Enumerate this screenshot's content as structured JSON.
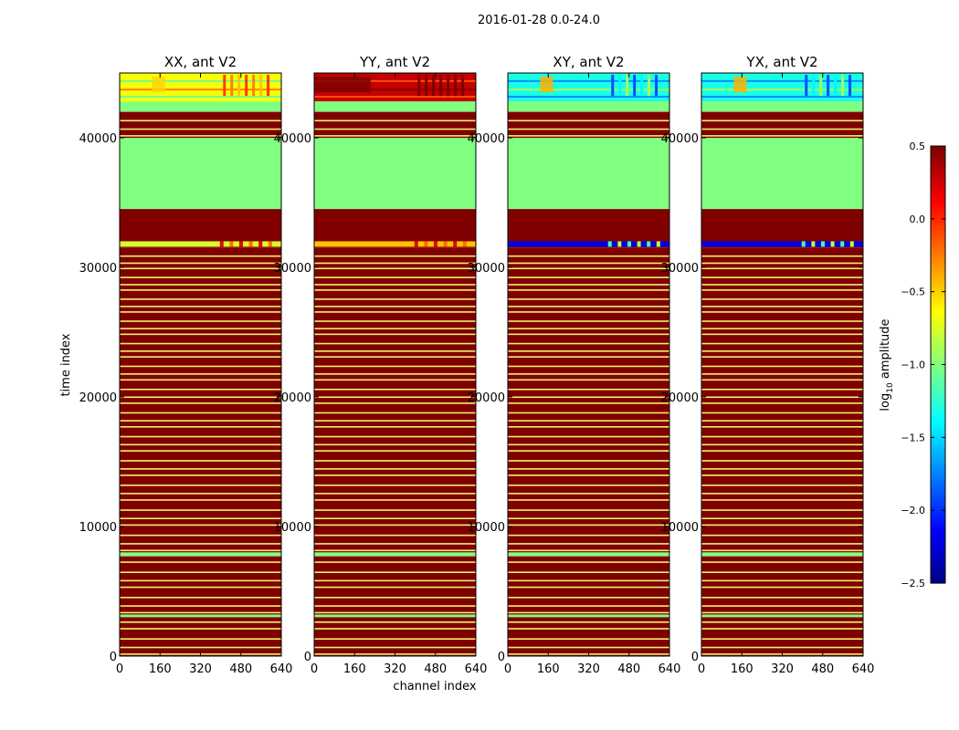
{
  "chart_data": {
    "type": "heatmap",
    "title": "2016-01-28 0.0-24.0",
    "xlabel": "channel index",
    "ylabel": "time index",
    "xlim": [
      0,
      640
    ],
    "ylim": [
      0,
      45000
    ],
    "xticks": [
      0,
      160,
      320,
      480,
      640
    ],
    "yticks": [
      0,
      10000,
      20000,
      30000,
      40000
    ],
    "colorbar": {
      "label_main": "log",
      "label_sub": "10",
      "label_rest": " amplitude",
      "range": [
        -2.5,
        0.5
      ],
      "ticks": [
        -2.5,
        -2.0,
        -1.5,
        -1.0,
        -0.5,
        0.0,
        0.5
      ],
      "tick_labels": [
        "−2.5",
        "−2.0",
        "−1.5",
        "−1.0",
        "−0.5",
        "0.0",
        "0.5"
      ],
      "colormap": "jet"
    },
    "series": [
      {
        "name": "XX, ant V2",
        "top_level": -0.65,
        "flag_level": -0.6,
        "flag_band_hot": true
      },
      {
        "name": "YY, ant V2",
        "top_level": 0.3,
        "flag_level": -0.3,
        "flag_band_hot": true
      },
      {
        "name": "XY, ant V2",
        "top_level": -1.3,
        "flag_level": -2.2,
        "flag_band_hot": false
      },
      {
        "name": "YX, ant V2",
        "top_level": -1.3,
        "flag_level": -2.2,
        "flag_band_hot": false
      }
    ],
    "regions": [
      {
        "from": 42800,
        "to": 45000,
        "kind": "data"
      },
      {
        "from": 42000,
        "to": 42800,
        "kind": "gap"
      },
      {
        "from": 40000,
        "to": 42000,
        "kind": "flagged_striped"
      },
      {
        "from": 34500,
        "to": 40000,
        "kind": "gap"
      },
      {
        "from": 32000,
        "to": 34500,
        "kind": "flagged"
      },
      {
        "from": 31500,
        "to": 32000,
        "kind": "data_band"
      },
      {
        "from": 8000,
        "to": 31500,
        "kind": "flagged_striped"
      },
      {
        "from": 7700,
        "to": 8000,
        "kind": "gap"
      },
      {
        "from": 3200,
        "to": 7700,
        "kind": "flagged_striped"
      },
      {
        "from": 3000,
        "to": 3200,
        "kind": "gap"
      },
      {
        "from": 0,
        "to": 3000,
        "kind": "flagged_striped"
      }
    ],
    "flagged_value": 0.5,
    "gap_value": -1.0
  }
}
